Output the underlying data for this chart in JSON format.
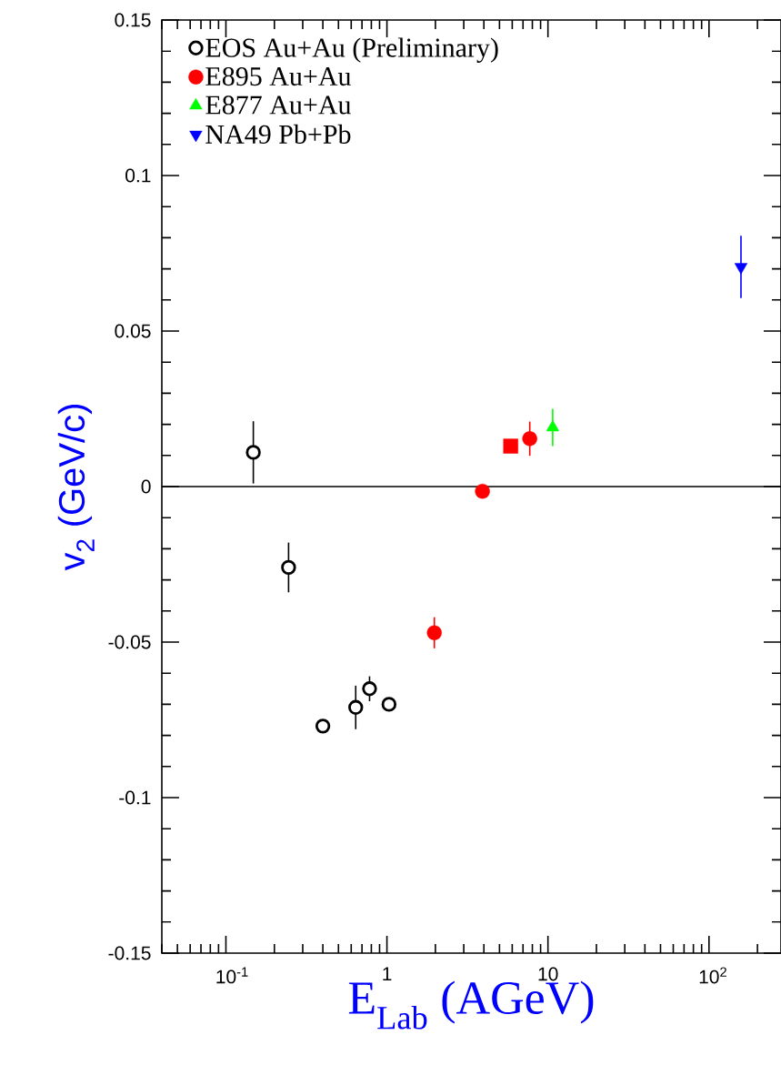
{
  "chart_data": {
    "type": "scatter",
    "xlabel": "E$_{Lab}$ (AGeV)",
    "ylabel": "v$_{2}$ (GeV/c)",
    "log": "x",
    "xlim": [
      0.04,
      280
    ],
    "ylim": [
      -0.15,
      0.15
    ],
    "xticks": [
      {
        "value": 0.1,
        "label": "10$^{-1}$"
      },
      1,
      10,
      {
        "value": 100,
        "label": "10$^{2}$"
      }
    ],
    "yticks": [
      -0.15,
      -0.1,
      -0.05,
      0,
      0.05,
      0.1,
      0.15
    ],
    "legend": "top left",
    "ref_lines": [
      {
        "axis": "y",
        "value": 0,
        "color": "#000000"
      }
    ],
    "series": [
      {
        "name": "EOS Au+Au (Preliminary)",
        "color": "#000000",
        "marker": "circle",
        "x": [
          0.148,
          0.245,
          0.4,
          0.64,
          0.78,
          1.03
        ],
        "values": [
          0.011,
          -0.026,
          -0.077,
          -0.071,
          -0.065,
          -0.07
        ],
        "errors": [
          0.01,
          0.008,
          null,
          0.007,
          0.004,
          null
        ]
      },
      {
        "name": "E895 Au+Au",
        "color": "#ff0000",
        "marker": "circle",
        "x": [
          1.97,
          3.92,
          7.71
        ],
        "values": [
          -0.047,
          -0.0015,
          0.0154
        ],
        "errors": [
          0.005,
          null,
          0.0055
        ]
      },
      {
        "name": "E877 Au+Au",
        "color": "#00ff00",
        "marker": "triangle",
        "x": [
          10.7
        ],
        "values": [
          0.019
        ],
        "errors": [
          0.006
        ]
      },
      {
        "name": "NA49 Pb+Pb",
        "color": "#0000ff",
        "marker": "triangle down",
        "x": [
          158
        ],
        "values": [
          0.0706
        ],
        "errors": [
          0.01
        ]
      },
      {
        "color": "#ff0000",
        "marker": "square",
        "x": [
          5.87
        ],
        "values": [
          0.013
        ]
      }
    ]
  }
}
